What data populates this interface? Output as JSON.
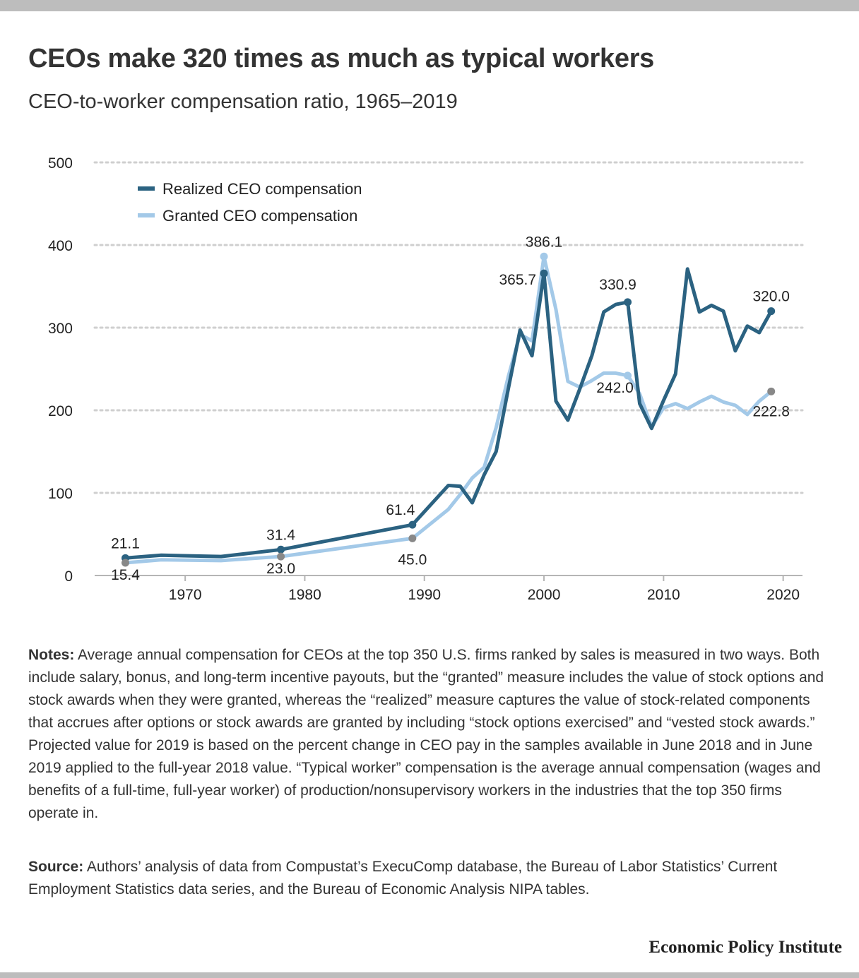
{
  "header": {
    "title": "CEOs make 320 times as much as typical workers",
    "subtitle": "CEO-to-worker compensation ratio, 1965–2019"
  },
  "footer": {
    "notes_label": "Notes:",
    "notes_text": "Average annual compensation for CEOs at the top 350 U.S. firms ranked by sales is measured in two ways. Both include salary, bonus, and long-term incentive payouts, but the “granted” measure includes the value of stock options and stock awards when they were granted, whereas the “realized” measure captures the value of stock-related components that accrues after options or stock awards are granted by including “stock options exercised” and “vested stock awards.” Projected value for 2019 is based on the percent change in CEO pay in the samples available in June 2018 and in June 2019 applied to the full-year 2018 value. “Typical worker” compensation is the average annual compensation (wages and benefits of a full-time, full-year worker) of production/nonsupervisory workers in the industries that the top 350 firms operate in.",
    "source_label": "Source:",
    "source_text": "Authors’ analysis of data from Compustat’s ExecuComp database, the Bureau of Labor Statistics’ Current Employment Statistics data series, and the Bureau of Economic Analysis NIPA tables.",
    "brand": "Economic Policy Institute"
  },
  "chart_data": {
    "type": "line",
    "title": "CEOs make 320 times as much as typical workers",
    "subtitle": "CEO-to-worker compensation ratio, 1965–2019",
    "xlabel": "",
    "ylabel": "",
    "xlim": [
      1960,
      2022
    ],
    "ylim": [
      0,
      500
    ],
    "x_ticks": [
      1970,
      1980,
      1990,
      2000,
      2010,
      2020
    ],
    "y_ticks": [
      0,
      100,
      200,
      300,
      400,
      500
    ],
    "grid": "horizontal dotted",
    "legend_position": "top-left",
    "series": [
      {
        "name": "Realized CEO compensation",
        "color": "#2b6281",
        "points": [
          [
            1965,
            21.1
          ],
          [
            1968,
            24.5
          ],
          [
            1973,
            23.0
          ],
          [
            1978,
            31.4
          ],
          [
            1989,
            61.4
          ],
          [
            1992,
            109.0
          ],
          [
            1993,
            108.0
          ],
          [
            1994,
            88.0
          ],
          [
            1995,
            122.0
          ],
          [
            1996,
            150.0
          ],
          [
            1997,
            225.0
          ],
          [
            1998,
            297.0
          ],
          [
            1999,
            266.0
          ],
          [
            2000,
            365.7
          ],
          [
            2001,
            211.0
          ],
          [
            2002,
            188.0
          ],
          [
            2003,
            226.0
          ],
          [
            2004,
            266.0
          ],
          [
            2005,
            319.0
          ],
          [
            2006,
            328.0
          ],
          [
            2007,
            330.9
          ],
          [
            2008,
            208.0
          ],
          [
            2009,
            178.0
          ],
          [
            2010,
            212.0
          ],
          [
            2011,
            244.0
          ],
          [
            2012,
            371.0
          ],
          [
            2013,
            319.0
          ],
          [
            2014,
            327.0
          ],
          [
            2015,
            320.0
          ],
          [
            2016,
            272.0
          ],
          [
            2017,
            302.0
          ],
          [
            2018,
            294.0
          ],
          [
            2019,
            320.0
          ]
        ]
      },
      {
        "name": "Granted CEO compensation",
        "color": "#a3c9e8",
        "points": [
          [
            1965,
            15.4
          ],
          [
            1968,
            19.0
          ],
          [
            1973,
            18.0
          ],
          [
            1978,
            23.0
          ],
          [
            1989,
            45.0
          ],
          [
            1992,
            80.0
          ],
          [
            1993,
            98.0
          ],
          [
            1994,
            118.0
          ],
          [
            1995,
            131.0
          ],
          [
            1996,
            179.0
          ],
          [
            1997,
            240.0
          ],
          [
            1998,
            292.0
          ],
          [
            1999,
            284.0
          ],
          [
            2000,
            386.1
          ],
          [
            2001,
            322.0
          ],
          [
            2002,
            235.0
          ],
          [
            2003,
            228.0
          ],
          [
            2004,
            236.0
          ],
          [
            2005,
            245.0
          ],
          [
            2006,
            245.0
          ],
          [
            2007,
            242.0
          ],
          [
            2008,
            220.0
          ],
          [
            2009,
            180.0
          ],
          [
            2010,
            203.0
          ],
          [
            2011,
            208.0
          ],
          [
            2012,
            202.0
          ],
          [
            2013,
            210.0
          ],
          [
            2014,
            217.0
          ],
          [
            2015,
            210.0
          ],
          [
            2016,
            206.0
          ],
          [
            2017,
            195.0
          ],
          [
            2018,
            211.0
          ],
          [
            2019,
            222.8
          ]
        ]
      }
    ],
    "markers": [
      {
        "series": 0,
        "x": 1965,
        "y": 21.1,
        "label": "21.1",
        "color": "#2b6281"
      },
      {
        "series": 0,
        "x": 1978,
        "y": 31.4,
        "label": "31.4",
        "color": "#2b6281"
      },
      {
        "series": 0,
        "x": 1989,
        "y": 61.4,
        "label": "61.4",
        "color": "#2b6281"
      },
      {
        "series": 0,
        "x": 2000,
        "y": 365.7,
        "label": "365.7",
        "color": "#2b6281"
      },
      {
        "series": 0,
        "x": 2007,
        "y": 330.9,
        "label": "330.9",
        "color": "#2b6281"
      },
      {
        "series": 0,
        "x": 2019,
        "y": 320.0,
        "label": "320.0",
        "color": "#2b6281"
      },
      {
        "series": 1,
        "x": 1965,
        "y": 15.4,
        "label": "15.4",
        "color": "#888888"
      },
      {
        "series": 1,
        "x": 1978,
        "y": 23.0,
        "label": "23.0",
        "color": "#888888"
      },
      {
        "series": 1,
        "x": 1989,
        "y": 45.0,
        "label": "45.0",
        "color": "#888888"
      },
      {
        "series": 1,
        "x": 2000,
        "y": 386.1,
        "label": "386.1",
        "color": "#a3c9e8"
      },
      {
        "series": 1,
        "x": 2007,
        "y": 242.0,
        "label": "242.0",
        "color": "#a3c9e8"
      },
      {
        "series": 1,
        "x": 2019,
        "y": 222.8,
        "label": "222.8",
        "color": "#888888"
      }
    ]
  }
}
